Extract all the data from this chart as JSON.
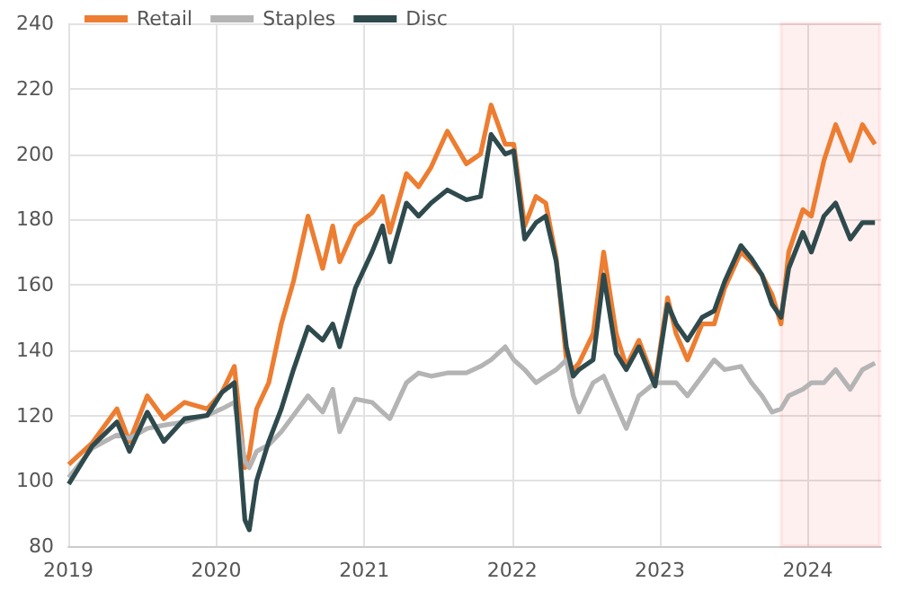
{
  "chart_data": {
    "type": "line",
    "x": [
      "2019-01-02",
      "2019-03-01",
      "2019-05-01",
      "2019-06-01",
      "2019-07-15",
      "2019-08-25",
      "2019-10-15",
      "2019-12-10",
      "2020-01-15",
      "2020-02-15",
      "2020-03-12",
      "2020-03-23",
      "2020-04-10",
      "2020-05-10",
      "2020-06-10",
      "2020-07-10",
      "2020-08-15",
      "2020-09-20",
      "2020-10-15",
      "2020-11-01",
      "2020-12-10",
      "2021-01-20",
      "2021-02-15",
      "2021-03-05",
      "2021-04-15",
      "2021-05-15",
      "2021-06-15",
      "2021-07-25",
      "2021-09-10",
      "2021-10-15",
      "2021-11-10",
      "2021-12-15",
      "2022-01-05",
      "2022-02-01",
      "2022-03-01",
      "2022-03-25",
      "2022-04-20",
      "2022-05-15",
      "2022-06-01",
      "2022-06-15",
      "2022-07-20",
      "2022-08-15",
      "2022-09-15",
      "2022-10-10",
      "2022-11-10",
      "2022-12-20",
      "2023-01-20",
      "2023-02-10",
      "2023-03-10",
      "2023-04-15",
      "2023-05-15",
      "2023-06-10",
      "2023-07-20",
      "2023-08-15",
      "2023-09-10",
      "2023-10-05",
      "2023-10-27",
      "2023-11-15",
      "2023-12-20",
      "2024-01-10",
      "2024-02-10",
      "2024-03-10",
      "2024-04-15",
      "2024-05-15",
      "2024-06-15"
    ],
    "series": [
      {
        "name": "Retail",
        "color": "#ed7d31",
        "values": [
          105,
          111.6,
          122,
          112,
          126,
          119,
          124,
          122,
          127,
          135,
          104,
          108,
          122,
          130,
          148,
          161,
          181,
          165,
          178,
          167,
          178,
          182,
          187,
          176,
          194,
          190,
          196,
          207,
          197,
          200,
          215,
          203,
          203,
          178,
          187,
          185,
          168,
          137,
          134,
          136,
          145,
          170,
          145,
          135,
          143,
          130,
          156,
          145,
          137,
          148,
          148,
          159,
          170,
          167,
          163,
          157,
          148,
          170,
          183,
          181,
          198,
          209,
          198,
          209,
          203
        ]
      },
      {
        "name": "Staples",
        "color": "#b4b4b4",
        "values": [
          101,
          110,
          114,
          113,
          116,
          117,
          118,
          120,
          122,
          124,
          106,
          104,
          109,
          111,
          115,
          120,
          126,
          121,
          128,
          115,
          125,
          124,
          121,
          119,
          130,
          133,
          132,
          133,
          133,
          135,
          137,
          141,
          137,
          134,
          130,
          132,
          134,
          137,
          126,
          121,
          130,
          132,
          123,
          116,
          126,
          130,
          130,
          130,
          126,
          132,
          137,
          134,
          135,
          130,
          126,
          121,
          122,
          126,
          128,
          130,
          130,
          134,
          128,
          134,
          136
        ]
      },
      {
        "name": "Disc",
        "color": "#2f4a4d",
        "values": [
          99,
          110.6,
          118,
          109,
          121,
          112,
          119,
          120,
          127,
          130,
          88,
          85,
          100,
          112,
          122,
          134,
          147,
          143,
          148,
          141,
          159,
          170,
          178,
          167,
          185,
          181,
          185,
          189,
          186,
          187,
          206,
          200,
          201,
          174,
          179,
          181,
          167,
          141,
          132,
          134,
          137,
          163,
          139,
          134,
          141,
          129,
          154,
          148,
          143,
          150,
          152,
          161,
          172,
          168,
          163,
          154,
          150,
          165,
          176,
          170,
          181,
          185,
          174,
          179,
          179
        ]
      }
    ],
    "xlim": [
      "2019-01-01",
      "2024-06-30"
    ],
    "xticks": [
      "2019",
      "2020",
      "2021",
      "2022",
      "2023",
      "2024"
    ],
    "ylim": [
      80,
      240
    ],
    "yticks": [
      80,
      100,
      120,
      140,
      160,
      180,
      200,
      220,
      240
    ],
    "grid": true,
    "legend": "top",
    "bands": [
      {
        "axis": "x",
        "from": "2023-10-27",
        "to": "2024-06-27",
        "color": "#ff0000"
      }
    ]
  }
}
